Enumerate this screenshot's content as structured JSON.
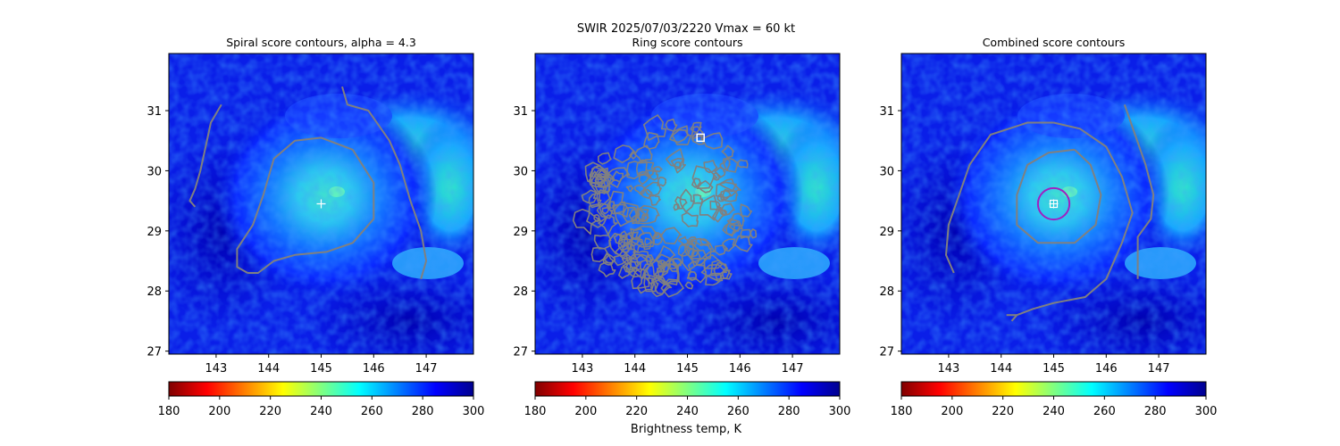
{
  "figure": {
    "suptitle_line1": "SWIR  2025/07/03/2220    Vmax = 60 kt",
    "colorbar_label": "Brightness temp, K"
  },
  "colorbar": {
    "colormap": "jet_r",
    "vmin": 180,
    "vmax": 300,
    "ticks": [
      180,
      200,
      220,
      240,
      260,
      280,
      300
    ],
    "colors": [
      "#800000",
      "#ff0000",
      "#ff8000",
      "#ffff00",
      "#80ff80",
      "#00ffff",
      "#0080ff",
      "#0000ff",
      "#00008f"
    ]
  },
  "chart_data": [
    {
      "type": "heatmap",
      "title": "Spiral score contours, alpha =  4.3",
      "xlim": [
        142.1,
        147.9
      ],
      "ylim": [
        26.95,
        31.95
      ],
      "xticks": [
        143,
        144,
        145,
        146,
        147
      ],
      "yticks": [
        27,
        28,
        29,
        30,
        31
      ],
      "contour_color": "#808080",
      "markers": [
        {
          "type": "plus",
          "lon": 145.0,
          "lat": 29.45,
          "color": "#ffffff"
        }
      ],
      "contours": [
        [
          [
            143.1,
            31.1
          ],
          [
            142.9,
            30.8
          ],
          [
            142.8,
            30.4
          ],
          [
            142.7,
            30.0
          ],
          [
            142.6,
            29.7
          ],
          [
            142.5,
            29.5
          ],
          [
            142.6,
            29.4
          ]
        ],
        [
          [
            143.6,
            28.3
          ],
          [
            143.4,
            28.4
          ],
          [
            143.4,
            28.7
          ],
          [
            143.7,
            29.1
          ],
          [
            143.9,
            29.6
          ],
          [
            144.1,
            30.2
          ],
          [
            144.5,
            30.5
          ],
          [
            145.0,
            30.55
          ],
          [
            145.6,
            30.35
          ],
          [
            146.0,
            29.8
          ],
          [
            146.0,
            29.2
          ],
          [
            145.6,
            28.8
          ],
          [
            145.1,
            28.65
          ],
          [
            144.5,
            28.6
          ],
          [
            144.1,
            28.5
          ],
          [
            143.8,
            28.3
          ],
          [
            143.6,
            28.3
          ]
        ],
        [
          [
            145.4,
            31.4
          ],
          [
            145.5,
            31.1
          ],
          [
            145.9,
            31.0
          ],
          [
            146.3,
            30.5
          ],
          [
            146.5,
            30.1
          ],
          [
            146.7,
            29.5
          ],
          [
            146.9,
            29.0
          ],
          [
            147.0,
            28.5
          ],
          [
            146.9,
            28.2
          ]
        ]
      ]
    },
    {
      "type": "heatmap",
      "title": "Ring score contours",
      "xlim": [
        142.1,
        147.9
      ],
      "ylim": [
        26.95,
        31.95
      ],
      "xticks": [
        143,
        144,
        145,
        146,
        147
      ],
      "yticks": [
        27,
        28,
        29,
        30,
        31
      ],
      "contour_color": "#808080",
      "markers": [
        {
          "type": "square",
          "lon": 145.25,
          "lat": 30.55,
          "color": "#ffffff"
        }
      ],
      "contour_regions": [
        {
          "center_lon": 144.85,
          "center_lat": 29.35,
          "radius_lon": 1.6,
          "radius_lat": 1.5
        },
        {
          "center_lon": 143.9,
          "center_lat": 29.3,
          "radius_lon": 0.7,
          "radius_lat": 1.1
        },
        {
          "center_lon": 145.0,
          "center_lat": 29.1,
          "radius_lon": 1.3,
          "radius_lat": 1.1
        }
      ]
    },
    {
      "type": "heatmap",
      "title": "Combined score contours",
      "xlim": [
        142.1,
        147.9
      ],
      "ylim": [
        26.95,
        31.95
      ],
      "xticks": [
        143,
        144,
        145,
        146,
        147
      ],
      "yticks": [
        27,
        28,
        29,
        30,
        31
      ],
      "contour_color": "#808080",
      "markers": [
        {
          "type": "circle",
          "lon": 145.0,
          "lat": 29.45,
          "radius_deg": 0.3,
          "color": "#a020c0"
        },
        {
          "type": "square-plus",
          "lon": 145.0,
          "lat": 29.45,
          "color": "#ffffff"
        }
      ],
      "contours": [
        [
          [
            143.1,
            28.3
          ],
          [
            142.95,
            28.6
          ],
          [
            143.0,
            29.1
          ],
          [
            143.2,
            29.6
          ],
          [
            143.4,
            30.1
          ],
          [
            143.8,
            30.6
          ],
          [
            144.5,
            30.8
          ],
          [
            145.0,
            30.8
          ]
        ],
        [
          [
            145.0,
            30.8
          ],
          [
            145.5,
            30.7
          ],
          [
            146.0,
            30.4
          ],
          [
            146.3,
            29.9
          ],
          [
            146.5,
            29.3
          ],
          [
            146.3,
            28.8
          ],
          [
            146.0,
            28.2
          ],
          [
            145.6,
            27.9
          ],
          [
            145.0,
            27.8
          ],
          [
            144.6,
            27.7
          ],
          [
            144.3,
            27.6
          ],
          [
            144.2,
            27.5
          ]
        ],
        [
          [
            144.3,
            27.6
          ],
          [
            144.1,
            27.6
          ]
        ],
        [
          [
            145.4,
            30.35
          ],
          [
            144.9,
            30.3
          ],
          [
            144.5,
            30.1
          ],
          [
            144.3,
            29.6
          ],
          [
            144.3,
            29.1
          ],
          [
            144.7,
            28.8
          ],
          [
            145.4,
            28.8
          ],
          [
            145.8,
            29.1
          ],
          [
            145.9,
            29.6
          ],
          [
            145.7,
            30.1
          ],
          [
            145.4,
            30.35
          ]
        ],
        [
          [
            146.35,
            31.1
          ],
          [
            146.55,
            30.6
          ],
          [
            146.75,
            30.1
          ],
          [
            146.9,
            29.6
          ],
          [
            146.85,
            29.2
          ],
          [
            146.6,
            28.9
          ],
          [
            146.6,
            28.2
          ]
        ]
      ]
    }
  ]
}
